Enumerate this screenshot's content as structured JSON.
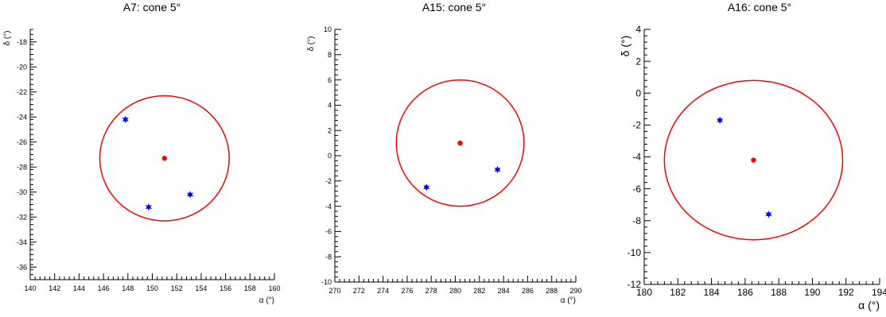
{
  "chart_data": [
    {
      "type": "scatter",
      "title": "A7: cone 5°",
      "xlabel": "α (°)",
      "ylabel": "δ (°)",
      "xlim": [
        140,
        160
      ],
      "ylim": [
        -37,
        -17
      ],
      "x_ticks": [
        140,
        142,
        144,
        146,
        148,
        150,
        152,
        154,
        156,
        158,
        160
      ],
      "y_ticks": [
        -36,
        -34,
        -32,
        -30,
        -28,
        -26,
        -24,
        -22,
        -20,
        -18
      ],
      "grid": false,
      "center": {
        "x": 151.0,
        "y": -27.3
      },
      "cone_radius": 5,
      "points": [
        {
          "x": 147.8,
          "y": -24.2
        },
        {
          "x": 149.7,
          "y": -31.2
        },
        {
          "x": 153.1,
          "y": -30.2
        }
      ],
      "colors": {
        "cone": "#ff0000",
        "center": "#ff0000",
        "points": "#0000ff"
      }
    },
    {
      "type": "scatter",
      "title": "A15: cone 5°",
      "xlabel": "α (°)",
      "ylabel": "δ (°)",
      "xlim": [
        270,
        290
      ],
      "ylim": [
        -10,
        10
      ],
      "x_ticks": [
        270,
        272,
        274,
        276,
        278,
        280,
        282,
        284,
        286,
        288,
        290
      ],
      "y_ticks": [
        -10,
        -8,
        -6,
        -4,
        -2,
        0,
        2,
        4,
        6,
        8,
        10
      ],
      "grid": false,
      "center": {
        "x": 280.4,
        "y": 1.0
      },
      "cone_radius": 5,
      "points": [
        {
          "x": 277.6,
          "y": -2.5
        },
        {
          "x": 283.5,
          "y": -1.1
        }
      ],
      "colors": {
        "cone": "#ff0000",
        "center": "#ff0000",
        "points": "#0000ff"
      }
    },
    {
      "type": "scatter",
      "title": "A16: cone 5°",
      "xlabel": "α (°)",
      "ylabel": "δ (°)",
      "xlim": [
        180,
        194
      ],
      "ylim": [
        -12,
        4
      ],
      "x_ticks": [
        180,
        182,
        184,
        186,
        188,
        190,
        192,
        194
      ],
      "y_ticks": [
        -12,
        -10,
        -8,
        -6,
        -4,
        -2,
        0,
        2,
        4
      ],
      "grid": false,
      "center": {
        "x": 186.5,
        "y": -4.2
      },
      "cone_radius": 5,
      "points": [
        {
          "x": 184.5,
          "y": -1.7
        },
        {
          "x": 187.4,
          "y": -7.6
        }
      ],
      "colors": {
        "cone": "#ff0000",
        "center": "#ff0000",
        "points": "#0000ff"
      }
    }
  ]
}
